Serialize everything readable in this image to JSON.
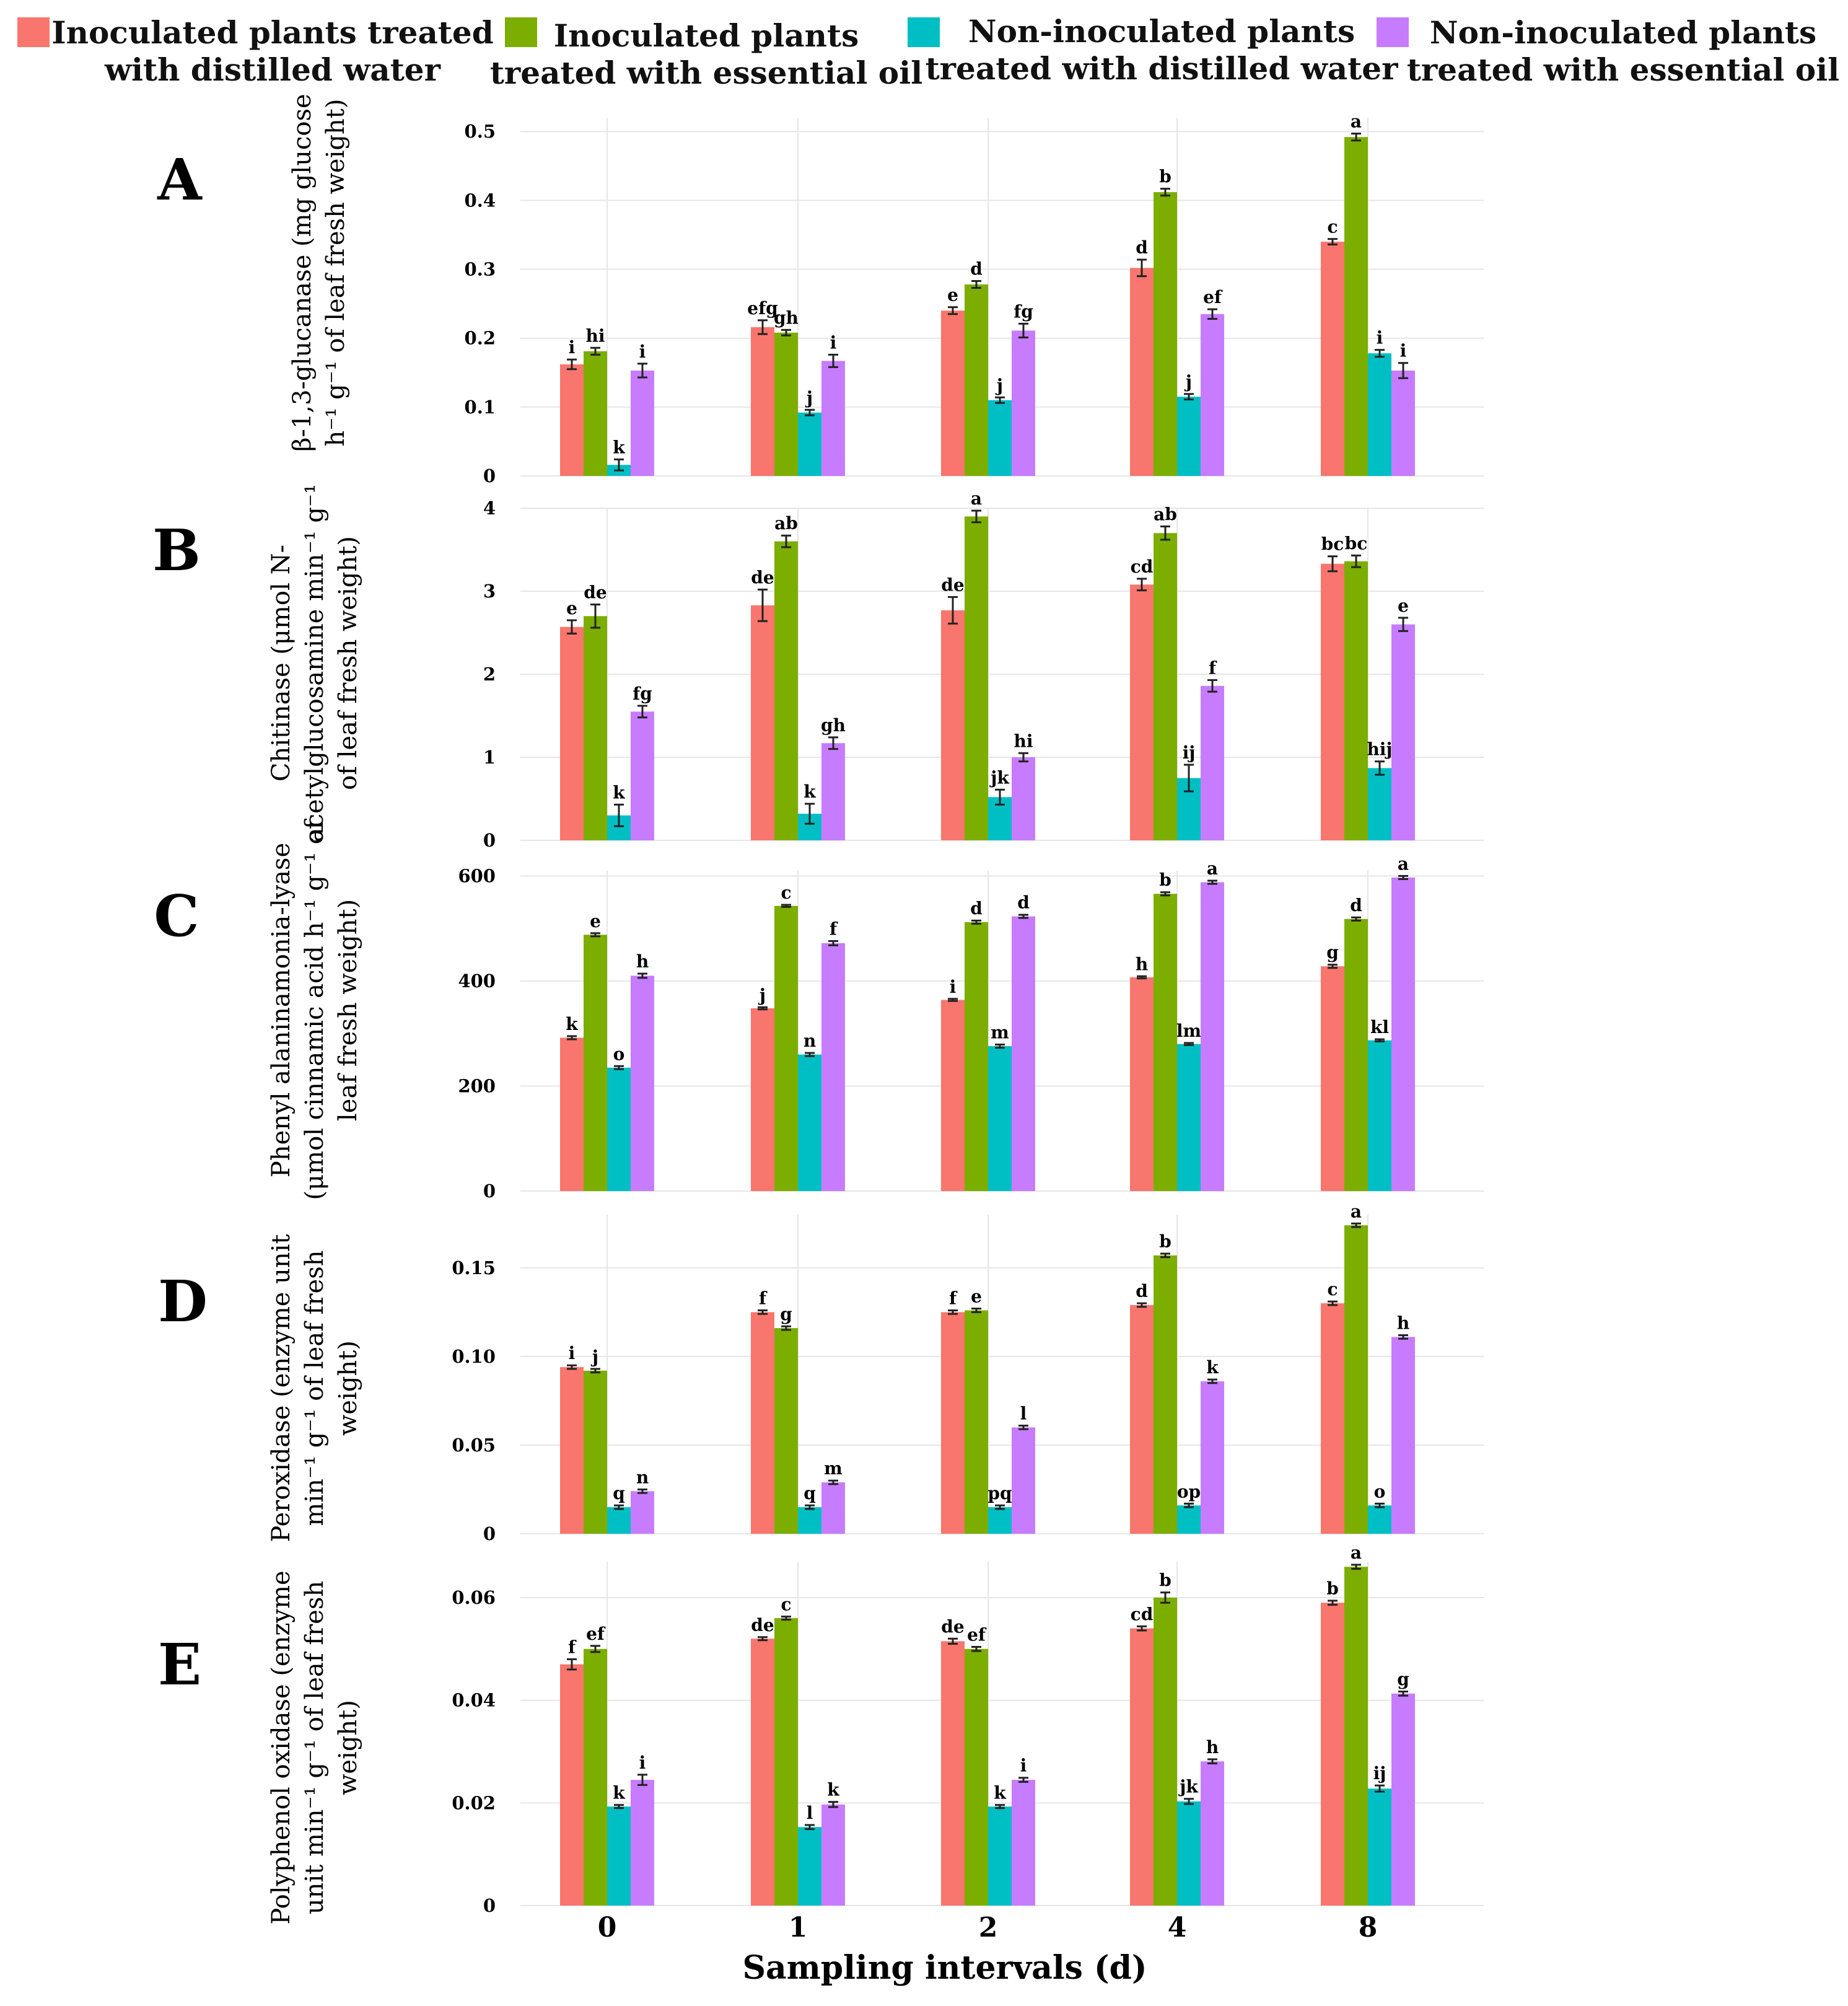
{
  "chart_data": {
    "type": "bar",
    "layout": "5 vertically stacked grouped bar panels sharing one x-axis",
    "xlabel": "Sampling intervals (d)",
    "categories": [
      "0",
      "1",
      "2",
      "4",
      "8"
    ],
    "legend": [
      {
        "name": "Inoculated plants treated with distilled water",
        "line1": "Inoculated plants treated",
        "line2": "with distilled water",
        "color": "#F8766D"
      },
      {
        "name": "Inoculated plants treated with essential oil",
        "line1": "Inoculated plants",
        "line2": "treated with essential oil",
        "color": "#7CAE00"
      },
      {
        "name": "Non-inoculated plants treated with distilled water",
        "line1": "Non-inoculated plants",
        "line2": "treated with distilled water",
        "color": "#00BFC4"
      },
      {
        "name": "Non-inoculated plants treated with essential oil",
        "line1": "Non-inoculated plants",
        "line2": "treated with essential oil",
        "color": "#C77CFF"
      }
    ],
    "legend_position": "top",
    "grid": true,
    "panels": [
      {
        "letter": "A",
        "ylabel_lines": [
          "β-1,3-glucanase (mg glucose",
          "h⁻¹ g⁻¹ of leaf fresh weight)"
        ],
        "ylim": [
          0,
          0.52
        ],
        "yticks": [
          0,
          0.1,
          0.2,
          0.3,
          0.4,
          0.5
        ],
        "ytick_labels": [
          "0",
          "0.1",
          "0.2",
          "0.3",
          "0.4",
          "0.5"
        ],
        "series": [
          {
            "name": "Inoculated plants treated with distilled water",
            "values": [
              0.162,
              0.216,
              0.24,
              0.302,
              0.34
            ],
            "errors": [
              0.007,
              0.01,
              0.005,
              0.012,
              0.004
            ],
            "letters": [
              "i",
              "efg",
              "e",
              "d",
              "c"
            ]
          },
          {
            "name": "Inoculated plants treated with essential oil",
            "values": [
              0.181,
              0.208,
              0.278,
              0.412,
              0.492
            ],
            "errors": [
              0.005,
              0.004,
              0.005,
              0.005,
              0.005
            ],
            "letters": [
              "hi",
              "gh",
              "d",
              "b",
              "a"
            ]
          },
          {
            "name": "Non-inoculated plants treated with distilled water",
            "values": [
              0.016,
              0.092,
              0.11,
              0.115,
              0.178
            ],
            "errors": [
              0.008,
              0.004,
              0.004,
              0.004,
              0.005
            ],
            "letters": [
              "k",
              "j",
              "j",
              "j",
              "i"
            ]
          },
          {
            "name": "Non-inoculated plants treated with essential oil",
            "values": [
              0.153,
              0.167,
              0.211,
              0.235,
              0.153
            ],
            "errors": [
              0.01,
              0.009,
              0.01,
              0.007,
              0.011
            ],
            "letters": [
              "i",
              "i",
              "fg",
              "ef",
              "i"
            ]
          }
        ]
      },
      {
        "letter": "B",
        "ylabel_lines": [
          "Chitinase (μmol N-",
          "acetylglucosamine min⁻¹ g⁻¹",
          "of leaf fresh weight)"
        ],
        "ylim": [
          0,
          4.0
        ],
        "yticks": [
          0,
          1,
          2,
          3,
          4
        ],
        "ytick_labels": [
          "0",
          "1",
          "2",
          "3",
          "4"
        ],
        "series": [
          {
            "name": "Inoculated plants treated with distilled water",
            "values": [
              2.57,
              2.83,
              2.77,
              3.08,
              3.33
            ],
            "errors": [
              0.08,
              0.19,
              0.16,
              0.07,
              0.09
            ],
            "letters": [
              "e",
              "de",
              "de",
              "cd",
              "bc"
            ]
          },
          {
            "name": "Inoculated plants treated with essential oil",
            "values": [
              2.7,
              3.6,
              3.9,
              3.7,
              3.36
            ],
            "errors": [
              0.14,
              0.07,
              0.07,
              0.08,
              0.07
            ],
            "letters": [
              "de",
              "ab",
              "a",
              "ab",
              "bc"
            ]
          },
          {
            "name": "Non-inoculated plants treated with distilled water",
            "values": [
              0.3,
              0.32,
              0.52,
              0.75,
              0.87
            ],
            "errors": [
              0.13,
              0.12,
              0.09,
              0.16,
              0.08
            ],
            "letters": [
              "k",
              "k",
              "jk",
              "ij",
              "hij"
            ]
          },
          {
            "name": "Non-inoculated plants treated with essential oil",
            "values": [
              1.55,
              1.17,
              1.0,
              1.86,
              2.6
            ],
            "errors": [
              0.07,
              0.07,
              0.05,
              0.07,
              0.08
            ],
            "letters": [
              "fg",
              "gh",
              "hi",
              "f",
              "e"
            ]
          }
        ]
      },
      {
        "letter": "C",
        "ylabel_lines": [
          "Phenyl alaninamonia-lyase",
          "(μmol cinnamic acid h⁻¹ g⁻¹ of",
          "leaf fresh weight)"
        ],
        "ylim": [
          0,
          610
        ],
        "yticks": [
          0,
          200,
          400,
          600
        ],
        "ytick_labels": [
          "0",
          "200",
          "400",
          "600"
        ],
        "series": [
          {
            "name": "Inoculated plants treated with distilled water",
            "values": [
              292,
              348,
              364,
              407,
              428
            ],
            "errors": [
              3,
              2,
              2,
              2,
              3
            ],
            "letters": [
              "k",
              "j",
              "i",
              "h",
              "g"
            ]
          },
          {
            "name": "Inoculated plants treated with essential oil",
            "values": [
              488,
              543,
              512,
              566,
              518
            ],
            "errors": [
              3,
              2,
              3,
              3,
              3
            ],
            "letters": [
              "e",
              "c",
              "d",
              "b",
              "d"
            ]
          },
          {
            "name": "Non-inoculated plants treated with distilled water",
            "values": [
              235,
              260,
              276,
              280,
              287
            ],
            "errors": [
              3,
              3,
              3,
              2,
              2
            ],
            "letters": [
              "o",
              "n",
              "m",
              "lm",
              "kl"
            ]
          },
          {
            "name": "Non-inoculated plants treated with essential oil",
            "values": [
              410,
              472,
              523,
              588,
              597
            ],
            "errors": [
              4,
              4,
              3,
              3,
              3
            ],
            "letters": [
              "h",
              "f",
              "d",
              "a",
              "a"
            ]
          }
        ]
      },
      {
        "letter": "D",
        "ylabel_lines": [
          "Peroxidase (enzyme unit",
          "min⁻¹ g⁻¹ of leaf fresh",
          "weight)"
        ],
        "ylim": [
          0,
          0.18
        ],
        "yticks": [
          0,
          0.05,
          0.1,
          0.15
        ],
        "ytick_labels": [
          "0",
          "0.05",
          "0.10",
          "0.15"
        ],
        "series": [
          {
            "name": "Inoculated plants treated with distilled water",
            "values": [
              0.094,
              0.125,
              0.125,
              0.129,
              0.13
            ],
            "errors": [
              0.001,
              0.001,
              0.001,
              0.001,
              0.001
            ],
            "letters": [
              "i",
              "f",
              "f",
              "d",
              "c"
            ]
          },
          {
            "name": "Inoculated plants treated with essential oil",
            "values": [
              0.092,
              0.116,
              0.126,
              0.157,
              0.174
            ],
            "errors": [
              0.001,
              0.001,
              0.001,
              0.001,
              0.001
            ],
            "letters": [
              "j",
              "g",
              "e",
              "b",
              "a"
            ]
          },
          {
            "name": "Non-inoculated plants treated with distilled water",
            "values": [
              0.015,
              0.015,
              0.015,
              0.016,
              0.016
            ],
            "errors": [
              0.001,
              0.001,
              0.001,
              0.001,
              0.001
            ],
            "letters": [
              "q",
              "q",
              "pq",
              "op",
              "o"
            ]
          },
          {
            "name": "Non-inoculated plants treated with essential oil",
            "values": [
              0.024,
              0.029,
              0.06,
              0.086,
              0.111
            ],
            "errors": [
              0.001,
              0.001,
              0.001,
              0.001,
              0.001
            ],
            "letters": [
              "n",
              "m",
              "l",
              "k",
              "h"
            ]
          }
        ]
      },
      {
        "letter": "E",
        "ylabel_lines": [
          "Polyphenol oxidase (enzyme",
          "unit min⁻¹ g⁻¹ of leaf fresh",
          "weight)"
        ],
        "ylim": [
          0,
          0.067
        ],
        "yticks": [
          0,
          0.02,
          0.04,
          0.06
        ],
        "ytick_labels": [
          "0",
          "0.02",
          "0.04",
          "0.06"
        ],
        "series": [
          {
            "name": "Inoculated plants treated with distilled water",
            "values": [
              0.047,
              0.052,
              0.0515,
              0.054,
              0.059
            ],
            "errors": [
              0.001,
              0.0003,
              0.0005,
              0.0004,
              0.0004
            ],
            "letters": [
              "f",
              "de",
              "de",
              "cd",
              "b"
            ]
          },
          {
            "name": "Inoculated plants treated with essential oil",
            "values": [
              0.05,
              0.056,
              0.05,
              0.06,
              0.066
            ],
            "errors": [
              0.0006,
              0.0003,
              0.0004,
              0.001,
              0.0004
            ],
            "letters": [
              "ef",
              "c",
              "ef",
              "b",
              "a"
            ]
          },
          {
            "name": "Non-inoculated plants treated with distilled water",
            "values": [
              0.0193,
              0.0153,
              0.0193,
              0.0203,
              0.0228
            ],
            "errors": [
              0.0003,
              0.0004,
              0.0003,
              0.0005,
              0.0006
            ],
            "letters": [
              "k",
              "l",
              "k",
              "jk",
              "ij"
            ]
          },
          {
            "name": "Non-inoculated plants treated with essential oil",
            "values": [
              0.0245,
              0.0197,
              0.0245,
              0.0281,
              0.0413
            ],
            "errors": [
              0.001,
              0.0005,
              0.0004,
              0.0004,
              0.0004
            ],
            "letters": [
              "i",
              "k",
              "i",
              "h",
              "g"
            ]
          }
        ]
      }
    ]
  }
}
